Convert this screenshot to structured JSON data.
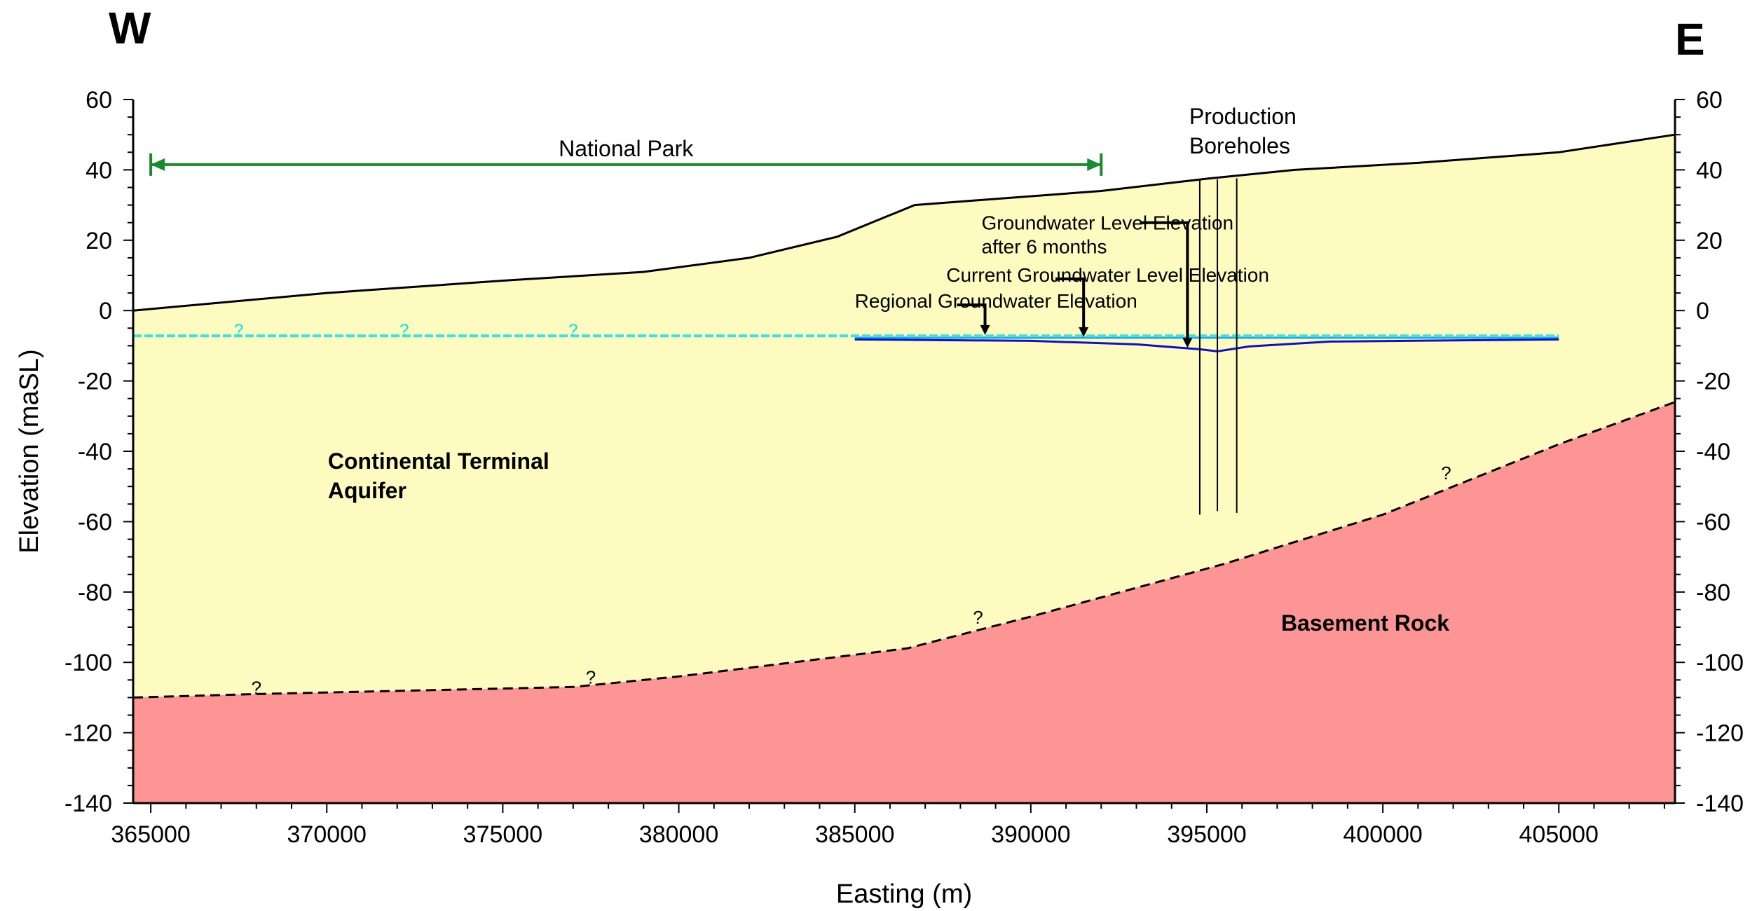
{
  "compass": {
    "west": "W",
    "east": "E"
  },
  "axes": {
    "xlabel": "Easting (m)",
    "ylabel": "Elevation (maSL)",
    "xlim": [
      364500,
      408300
    ],
    "ylim": [
      -140,
      60
    ],
    "x_ticks": [
      365000,
      370000,
      375000,
      380000,
      385000,
      390000,
      395000,
      400000,
      405000
    ],
    "y_ticks": [
      60,
      40,
      20,
      0,
      -20,
      -40,
      -60,
      -80,
      -100,
      -120,
      -140
    ]
  },
  "colors": {
    "aquifer": "#fdfbbf",
    "basement": "#fe9595",
    "ground_surface": "#000000",
    "regional_gw": "#33e6e6",
    "current_gw": "#1fa0e6",
    "gw_6months": "#1010c8",
    "national_park": "#1a8a2e"
  },
  "chart_data": {
    "type": "diagram",
    "ground_surface": {
      "x": [
        364500,
        370000,
        375000,
        379000,
        382000,
        384500,
        386700,
        388000,
        392000,
        395000,
        397500,
        401000,
        405000,
        408300
      ],
      "y": [
        0,
        5,
        8.5,
        11,
        15,
        21,
        30,
        31,
        34,
        37.5,
        40,
        42,
        45,
        50
      ]
    },
    "basement_contact": {
      "x": [
        364500,
        368000,
        377000,
        380000,
        386500,
        390000,
        395500,
        400000,
        405000,
        408300
      ],
      "y": [
        -110,
        -109,
        -107,
        -104,
        -96,
        -87,
        -72,
        -58,
        -38,
        -26
      ]
    },
    "regional_groundwater": {
      "x": [
        364500,
        405000
      ],
      "y": [
        -7.2,
        -7.2
      ]
    },
    "current_groundwater": {
      "x": [
        385000,
        405000
      ],
      "y": [
        -7.7,
        -7.7
      ]
    },
    "groundwater_6_months": {
      "x": [
        385000,
        390000,
        393000,
        394800,
        395300,
        396200,
        398500,
        405000
      ],
      "y": [
        -8.2,
        -8.6,
        -9.6,
        -11.0,
        -11.6,
        -10.2,
        -8.8,
        -8.2
      ]
    },
    "boreholes": [
      {
        "x": 394800,
        "top": 37,
        "bottom": -58
      },
      {
        "x": 395300,
        "top": 37.3,
        "bottom": -57
      },
      {
        "x": 395850,
        "top": 37.6,
        "bottom": -57.5
      }
    ],
    "national_park": {
      "x_start": 365000,
      "x_end": 392000,
      "y": 41.5,
      "label": "National Park"
    },
    "units": [
      {
        "name_lines": [
          "Continental Terminal",
          "Aquifer"
        ],
        "x": 377200,
        "y": -45
      },
      {
        "name_lines": [
          "Basement Rock"
        ],
        "x": 399500,
        "y": -91
      }
    ],
    "annotations": [
      {
        "lines": [
          "Production",
          "Boreholes"
        ],
        "x": 394500,
        "y": 53
      },
      {
        "lines": [
          "Groundwater Level Elevation",
          "after 6 months"
        ],
        "x": 388600,
        "y": 23,
        "arrow_from": [
          393100,
          25
        ],
        "arrow_bend": [
          394450,
          25
        ],
        "arrow_to": [
          394450,
          -10.6
        ]
      },
      {
        "lines": [
          "Current Groundwater Level Elevation"
        ],
        "x": 387600,
        "y": 8.2,
        "arrow_from": [
          390700,
          9
        ],
        "arrow_bend": [
          391500,
          9
        ],
        "arrow_to": [
          391500,
          -7.5
        ]
      },
      {
        "lines": [
          "Regional Groundwater Elevation"
        ],
        "x": 385000,
        "y": 0.8,
        "arrow_from": [
          387900,
          1.6
        ],
        "arrow_bend": [
          388700,
          1.6
        ],
        "arrow_to": [
          388700,
          -6.9
        ]
      }
    ],
    "question_marks": {
      "cyan": [
        {
          "x": 367500,
          "y": -7.1
        },
        {
          "x": 372200,
          "y": -7.1
        },
        {
          "x": 377000,
          "y": -7.1
        }
      ],
      "black": [
        {
          "x": 368000,
          "y": -109
        },
        {
          "x": 377500,
          "y": -106
        },
        {
          "x": 388500,
          "y": -89
        },
        {
          "x": 401800,
          "y": -48
        }
      ],
      "symbol": "?"
    }
  }
}
